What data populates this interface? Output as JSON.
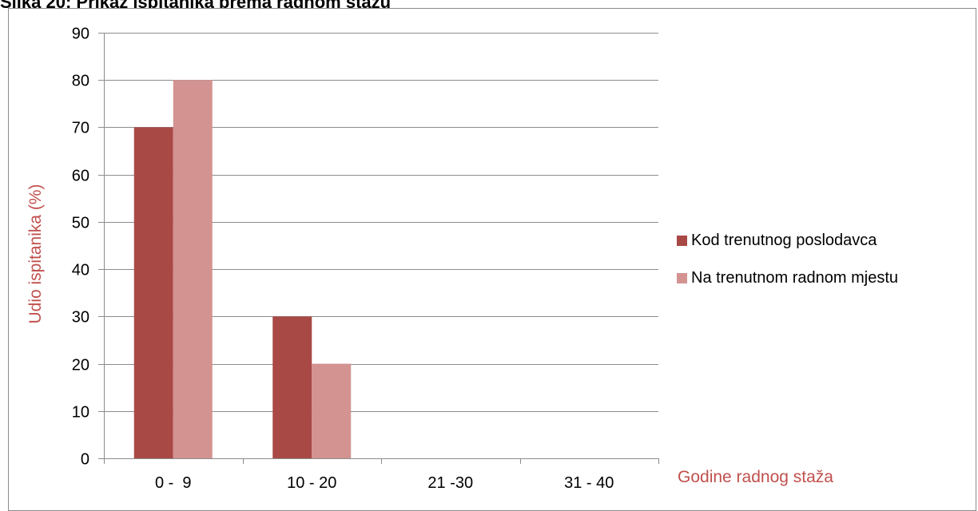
{
  "caption": "Slika 20: Prikaz ispitanika prema radnom stažu",
  "chart_data": {
    "type": "bar",
    "categories": [
      "0 -  9",
      "10 - 20",
      "21 -30",
      "31 - 40"
    ],
    "series": [
      {
        "name": "Kod trenutnog poslodavca",
        "values": [
          70,
          30,
          0,
          0
        ],
        "color": "#a84946"
      },
      {
        "name": "Na trenutnom radnom mjestu",
        "values": [
          80,
          20,
          0,
          0
        ],
        "color": "#d39391"
      }
    ],
    "ylim": [
      0,
      90
    ],
    "yticks": [
      0,
      10,
      20,
      30,
      40,
      50,
      60,
      70,
      80,
      90
    ],
    "ylabel": "Udio ispitanika (%)",
    "xlabel": "Godine radnog staža",
    "grid": true,
    "legend": "right",
    "colors": {
      "axis_title": "#c0504d",
      "grid": "#8c8c8c"
    }
  }
}
